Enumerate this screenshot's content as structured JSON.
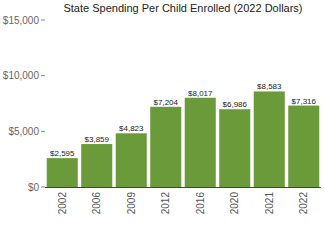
{
  "chart_data": {
    "type": "bar",
    "title": "State Spending Per Child Enrolled (2022 Dollars)",
    "categories": [
      "2002",
      "2006",
      "2009",
      "2012",
      "2016",
      "2020",
      "2021",
      "2022"
    ],
    "values": [
      2595,
      3859,
      4823,
      7204,
      8017,
      6986,
      8583,
      7316
    ],
    "value_labels": [
      "$2,595",
      "$3,859",
      "$4,823",
      "$7,204",
      "$8,017",
      "$6,986",
      "$8,583",
      "$7,316"
    ],
    "color": "#6b9a3a",
    "ylim": [
      0,
      15000
    ],
    "yticks": [
      {
        "value": 0,
        "label": "$0"
      },
      {
        "value": 5000,
        "label": "$5,000"
      },
      {
        "value": 10000,
        "label": "$10,000"
      },
      {
        "value": 15000,
        "label": "$15,000"
      }
    ],
    "grid": false,
    "data_labels": true
  }
}
